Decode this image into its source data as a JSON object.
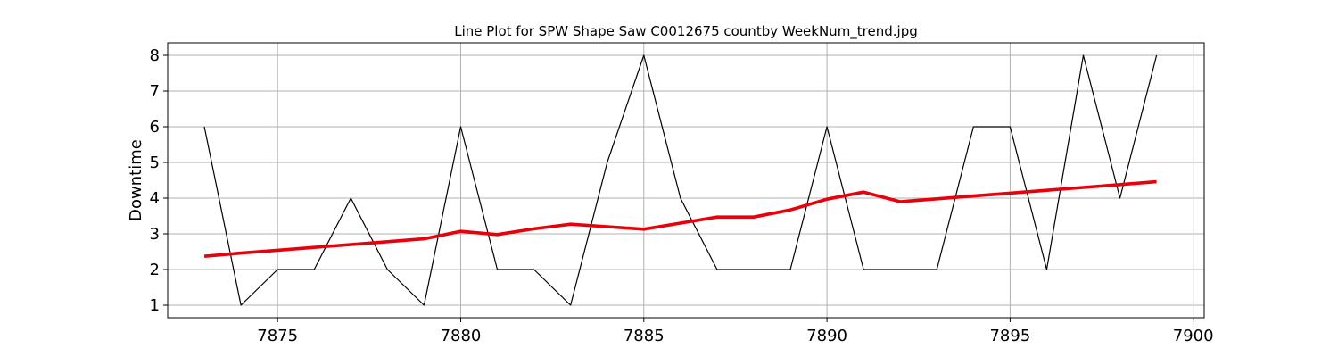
{
  "chart_data": {
    "type": "line",
    "title": "Line Plot for SPW Shape Saw C0012675 countby WeekNum_trend.jpg",
    "xlabel": "",
    "ylabel": "Downtime",
    "xlim": [
      7872,
      7900.3
    ],
    "ylim": [
      0.65,
      8.35
    ],
    "xticks": [
      7875,
      7880,
      7885,
      7890,
      7895,
      7900
    ],
    "yticks": [
      1,
      2,
      3,
      4,
      5,
      6,
      7,
      8
    ],
    "grid": true,
    "x": [
      7873,
      7874,
      7875,
      7876,
      7877,
      7878,
      7879,
      7880,
      7881,
      7882,
      7883,
      7884,
      7885,
      7886,
      7887,
      7888,
      7889,
      7890,
      7891,
      7892,
      7893,
      7894,
      7895,
      7896,
      7897,
      7898,
      7899
    ],
    "series": [
      {
        "color": "#000000",
        "values": [
          6,
          1,
          2,
          2,
          4,
          2,
          1,
          6,
          2,
          2,
          1,
          5,
          8,
          4,
          2,
          2,
          2,
          6,
          2,
          2,
          2,
          6,
          6,
          2,
          8,
          4,
          8
        ]
      },
      {
        "color": "#e8000b",
        "values": [
          2.37,
          2.46,
          2.54,
          2.62,
          2.7,
          2.78,
          2.86,
          3.07,
          2.98,
          3.14,
          3.27,
          3.2,
          3.13,
          3.3,
          3.47,
          3.47,
          3.67,
          3.97,
          4.17,
          3.9,
          3.98,
          4.06,
          4.14,
          4.22,
          4.3,
          4.38,
          4.46
        ]
      }
    ]
  }
}
